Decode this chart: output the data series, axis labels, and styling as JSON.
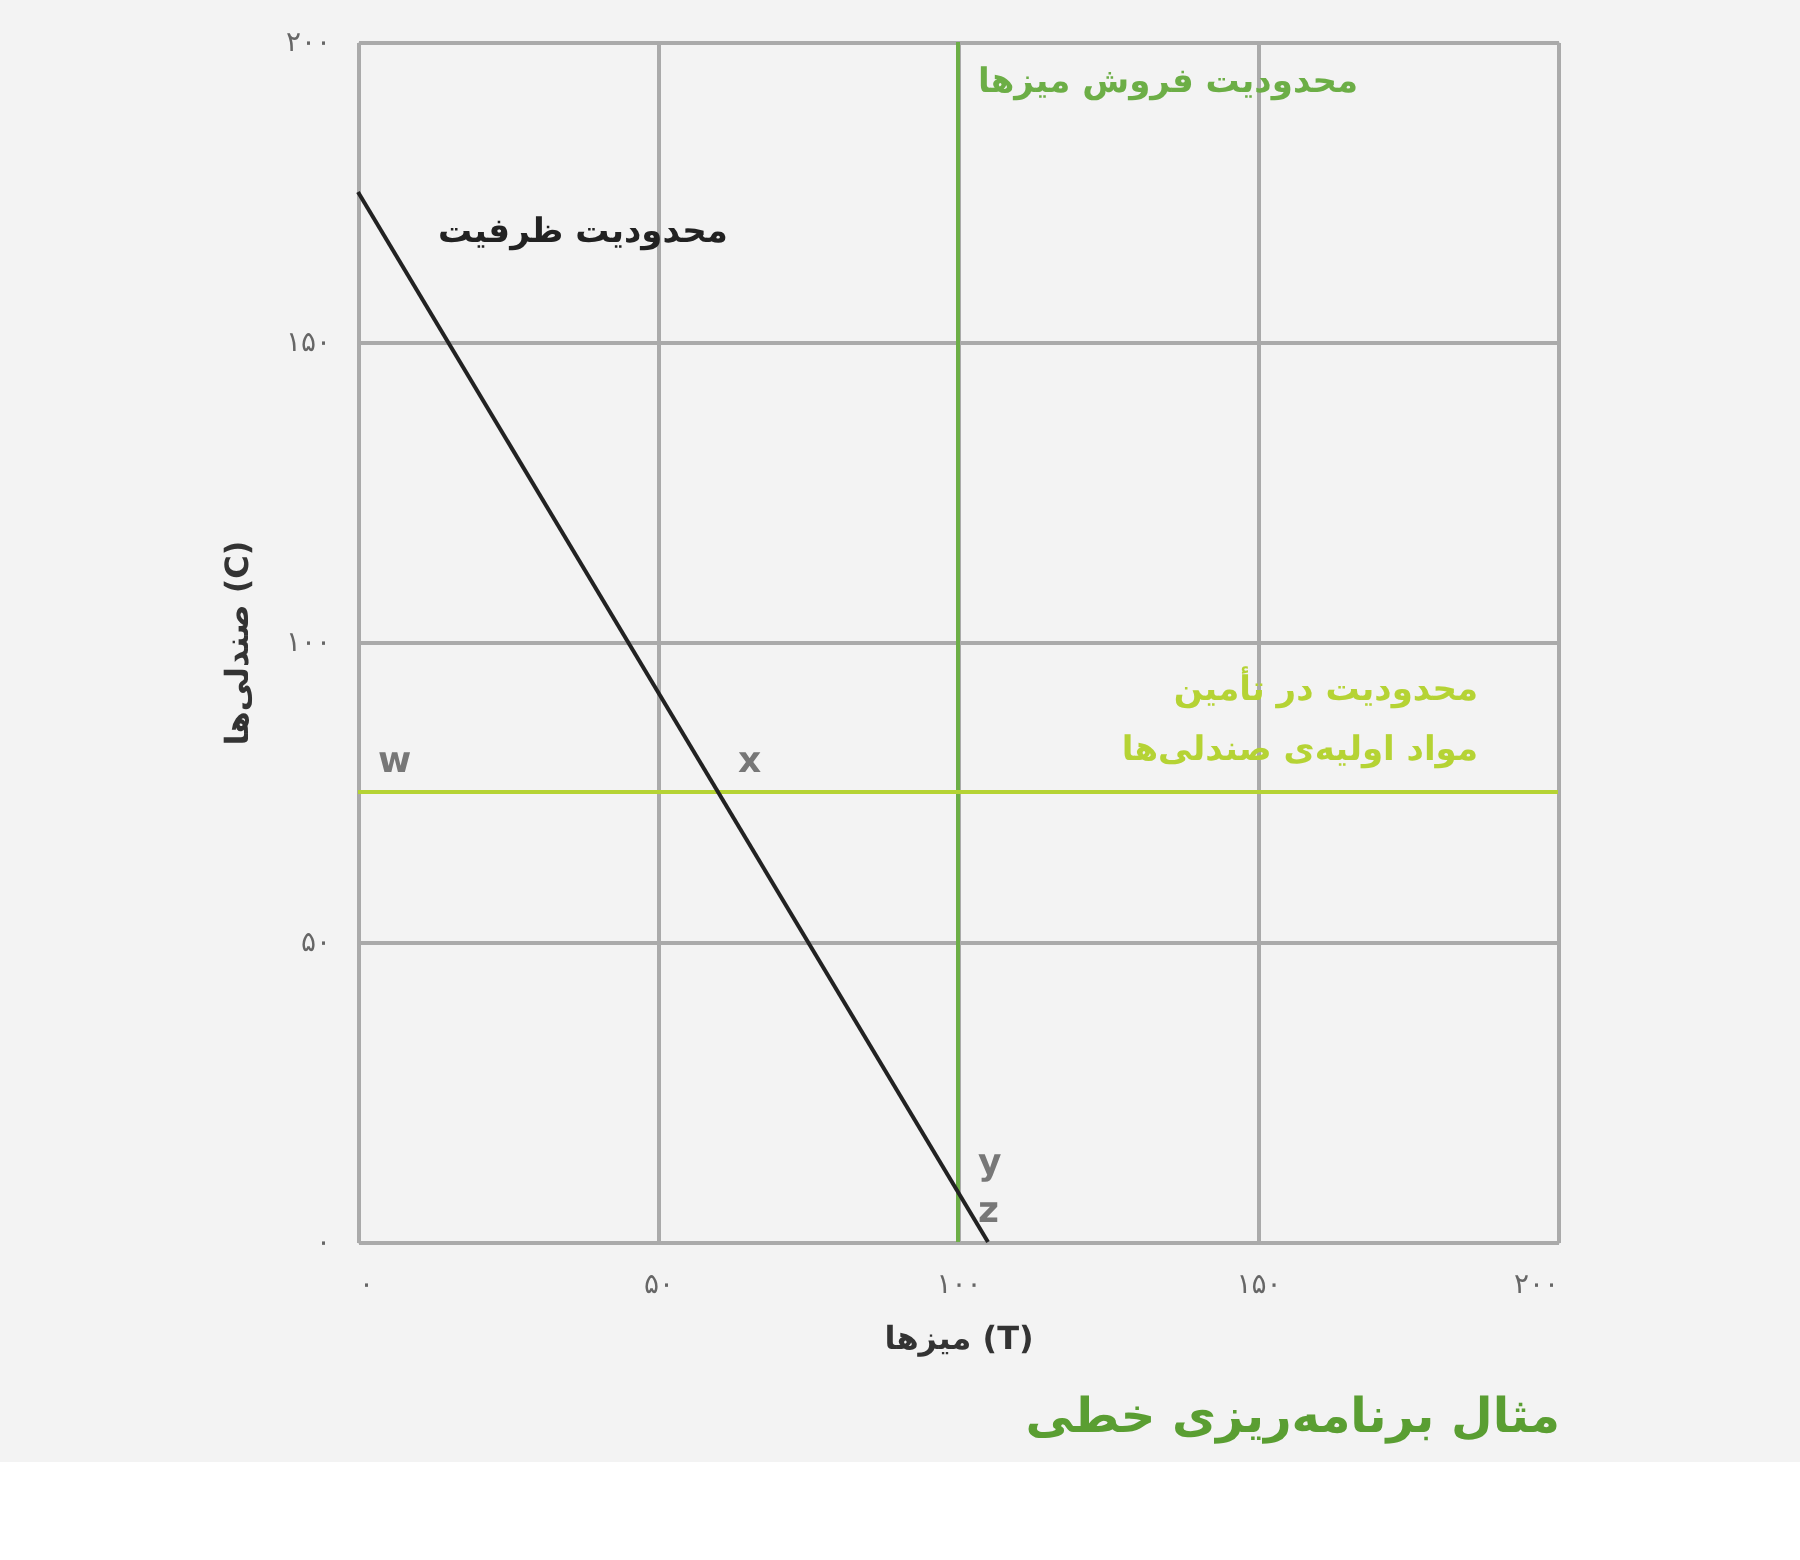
{
  "chart_data": {
    "type": "line",
    "title": "مثال برنامه‌ریزی خطی",
    "xlabel": "میزها (T)",
    "ylabel": "صندلی‌ها (C)",
    "x": [
      0,
      105
    ],
    "series": [
      {
        "name": "محدودیت ظرفیت",
        "color": "#222222",
        "values": [
          175,
          0
        ]
      }
    ],
    "xlim": [
      0,
      200
    ],
    "ylim": [
      0,
      200
    ],
    "xticks": [
      {
        "value": 0,
        "label": "۰"
      },
      {
        "value": 50,
        "label": "۵۰"
      },
      {
        "value": 100,
        "label": "۱۰۰"
      },
      {
        "value": 150,
        "label": "۱۵۰"
      },
      {
        "value": 200,
        "label": "۲۰۰"
      }
    ],
    "yticks": [
      {
        "value": 0,
        "label": "۰"
      },
      {
        "value": 50,
        "label": "۵۰"
      },
      {
        "value": 100,
        "label": "۱۰۰"
      },
      {
        "value": 150,
        "label": "۱۵۰"
      },
      {
        "value": 200,
        "label": "۲۰۰"
      }
    ],
    "ref_lines": [
      {
        "axis": "x",
        "value": 100,
        "label": "محدودیت فروش میزها",
        "color": "#6cae46"
      },
      {
        "axis": "y",
        "value": 75,
        "label": "محدودیت در تأمین\nمواد اولیه‌ی صندلی‌ها",
        "color": "#b5d334"
      }
    ],
    "annotations": [
      {
        "text": "w",
        "x": 0,
        "y": 75
      },
      {
        "text": "x",
        "x": 60,
        "y": 75
      },
      {
        "text": "y",
        "x": 100,
        "y": 8
      },
      {
        "text": "z",
        "x": 100,
        "y": 0
      }
    ],
    "grid": true,
    "legend": false,
    "marker": "none",
    "line_style": "solid"
  }
}
